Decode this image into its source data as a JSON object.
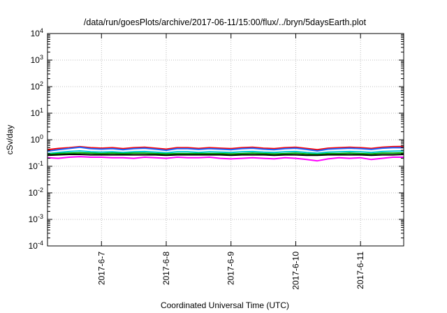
{
  "chart_data": {
    "type": "line",
    "title": "/data/run/goesPlots/archive/2017-06-11/15:00/flux/../bryn/5daysEarth.plot",
    "xlabel": "Coordinated Universal Time (UTC)",
    "ylabel": "cSv/day",
    "x_range": [
      "2017-06-06T04:00",
      "2017-06-11T16:00"
    ],
    "x_ticks": [
      {
        "label": "2017-6-7",
        "value": "2017-06-07T00:00"
      },
      {
        "label": "2017-6-8",
        "value": "2017-06-08T00:00"
      },
      {
        "label": "2017-6-9",
        "value": "2017-06-09T00:00"
      },
      {
        "label": "2017-6-10",
        "value": "2017-06-10T00:00"
      },
      {
        "label": "2017-6-11",
        "value": "2017-06-11T00:00"
      }
    ],
    "y_scale": "log",
    "ylim": [
      0.0001,
      10000
    ],
    "y_ticks": [
      {
        "base": "10",
        "exp": "-4",
        "value": 0.0001
      },
      {
        "base": "10",
        "exp": "-3",
        "value": 0.001
      },
      {
        "base": "10",
        "exp": "-2",
        "value": 0.01
      },
      {
        "base": "10",
        "exp": "-1",
        "value": 0.1
      },
      {
        "base": "10",
        "exp": "0",
        "value": 1
      },
      {
        "base": "10",
        "exp": "1",
        "value": 10
      },
      {
        "base": "10",
        "exp": "2",
        "value": 100
      },
      {
        "base": "10",
        "exp": "3",
        "value": 1000
      },
      {
        "base": "10",
        "exp": "4",
        "value": 10000
      }
    ],
    "grid": true,
    "x": [
      "2017-06-06T04:00",
      "2017-06-06T08:00",
      "2017-06-06T12:00",
      "2017-06-06T16:00",
      "2017-06-06T20:00",
      "2017-06-07T00:00",
      "2017-06-07T04:00",
      "2017-06-07T08:00",
      "2017-06-07T12:00",
      "2017-06-07T16:00",
      "2017-06-07T20:00",
      "2017-06-08T00:00",
      "2017-06-08T04:00",
      "2017-06-08T08:00",
      "2017-06-08T12:00",
      "2017-06-08T16:00",
      "2017-06-08T20:00",
      "2017-06-09T00:00",
      "2017-06-09T04:00",
      "2017-06-09T08:00",
      "2017-06-09T12:00",
      "2017-06-09T16:00",
      "2017-06-09T20:00",
      "2017-06-10T00:00",
      "2017-06-10T04:00",
      "2017-06-10T08:00",
      "2017-06-10T12:00",
      "2017-06-10T16:00",
      "2017-06-10T20:00",
      "2017-06-11T00:00",
      "2017-06-11T04:00",
      "2017-06-11T08:00",
      "2017-06-11T12:00",
      "2017-06-11T16:00"
    ],
    "series": [
      {
        "color": "#ff0000",
        "values": [
          0.42,
          0.47,
          0.5,
          0.55,
          0.5,
          0.48,
          0.5,
          0.46,
          0.5,
          0.52,
          0.48,
          0.44,
          0.5,
          0.5,
          0.47,
          0.5,
          0.48,
          0.46,
          0.5,
          0.52,
          0.48,
          0.46,
          0.5,
          0.52,
          0.47,
          0.42,
          0.48,
          0.5,
          0.52,
          0.5,
          0.47,
          0.52,
          0.55,
          0.56
        ]
      },
      {
        "color": "#1e64ff",
        "values": [
          0.37,
          0.42,
          0.47,
          0.52,
          0.46,
          0.44,
          0.46,
          0.42,
          0.46,
          0.48,
          0.44,
          0.4,
          0.46,
          0.46,
          0.43,
          0.46,
          0.44,
          0.42,
          0.46,
          0.48,
          0.44,
          0.42,
          0.46,
          0.48,
          0.43,
          0.38,
          0.44,
          0.46,
          0.48,
          0.46,
          0.43,
          0.48,
          0.5,
          0.5
        ]
      },
      {
        "color": "#00cccc",
        "values": [
          0.3,
          0.33,
          0.36,
          0.38,
          0.35,
          0.34,
          0.35,
          0.33,
          0.35,
          0.36,
          0.34,
          0.32,
          0.35,
          0.35,
          0.33,
          0.35,
          0.34,
          0.33,
          0.35,
          0.36,
          0.34,
          0.33,
          0.35,
          0.36,
          0.33,
          0.31,
          0.34,
          0.35,
          0.36,
          0.35,
          0.33,
          0.36,
          0.37,
          0.38
        ]
      },
      {
        "color": "#00aa00",
        "values": [
          0.28,
          0.3,
          0.31,
          0.32,
          0.31,
          0.3,
          0.31,
          0.3,
          0.31,
          0.31,
          0.3,
          0.29,
          0.3,
          0.3,
          0.3,
          0.3,
          0.3,
          0.29,
          0.3,
          0.31,
          0.3,
          0.29,
          0.3,
          0.31,
          0.29,
          0.28,
          0.3,
          0.3,
          0.31,
          0.3,
          0.29,
          0.31,
          0.31,
          0.32
        ]
      },
      {
        "color": "#000000",
        "values": [
          0.26,
          0.27,
          0.28,
          0.28,
          0.27,
          0.27,
          0.27,
          0.27,
          0.27,
          0.27,
          0.27,
          0.26,
          0.27,
          0.27,
          0.27,
          0.27,
          0.27,
          0.26,
          0.27,
          0.27,
          0.27,
          0.26,
          0.27,
          0.27,
          0.26,
          0.26,
          0.27,
          0.27,
          0.27,
          0.27,
          0.26,
          0.27,
          0.27,
          0.28
        ]
      },
      {
        "color": "#ff00ff",
        "values": [
          0.21,
          0.2,
          0.22,
          0.23,
          0.22,
          0.22,
          0.21,
          0.21,
          0.2,
          0.22,
          0.21,
          0.2,
          0.22,
          0.21,
          0.21,
          0.22,
          0.2,
          0.19,
          0.2,
          0.21,
          0.2,
          0.19,
          0.21,
          0.2,
          0.18,
          0.16,
          0.19,
          0.21,
          0.2,
          0.21,
          0.18,
          0.2,
          0.22,
          0.22
        ]
      }
    ]
  }
}
